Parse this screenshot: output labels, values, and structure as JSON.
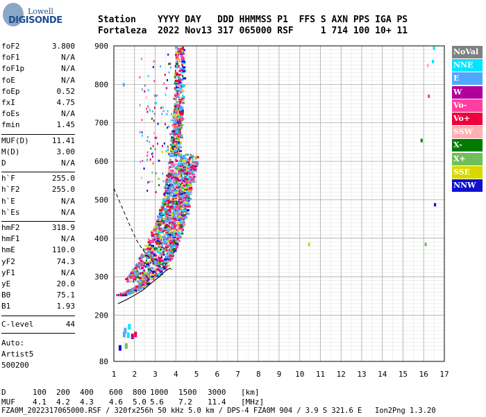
{
  "logo": {
    "line1": "Lowell",
    "line2": "DIGISONDE"
  },
  "header": {
    "line1": "Station    YYYY DAY   DDD HHMMSS P1  FFS S AXN PPS IGA PS",
    "line2": "Fortaleza  2022 Nov13 317 065000 RSF     1 714 100 10+ 11"
  },
  "params_group1": [
    {
      "name": "foF2",
      "value": "3.800"
    },
    {
      "name": "foF1",
      "value": "N/A"
    },
    {
      "name": "foF1p",
      "value": "N/A"
    },
    {
      "name": "foE",
      "value": "N/A"
    },
    {
      "name": "foEp",
      "value": "0.52"
    },
    {
      "name": "fxI",
      "value": "4.75"
    },
    {
      "name": "foEs",
      "value": "N/A"
    },
    {
      "name": "fmin",
      "value": "1.45"
    }
  ],
  "params_group2": [
    {
      "name": "MUF(D)",
      "value": "11.41"
    },
    {
      "name": "M(D)",
      "value": "3.00"
    },
    {
      "name": "D",
      "value": "N/A"
    }
  ],
  "params_group3": [
    {
      "name": "h`F",
      "value": "255.0"
    },
    {
      "name": "h`F2",
      "value": "255.0"
    },
    {
      "name": "h`E",
      "value": "N/A"
    },
    {
      "name": "h`Es",
      "value": "N/A"
    }
  ],
  "params_group4": [
    {
      "name": "hmF2",
      "value": "318.9"
    },
    {
      "name": "hmF1",
      "value": "N/A"
    },
    {
      "name": "hmE",
      "value": "110.0"
    },
    {
      "name": "yF2",
      "value": "74.3"
    },
    {
      "name": "yF1",
      "value": "N/A"
    },
    {
      "name": "yE",
      "value": "20.0"
    },
    {
      "name": "B0",
      "value": "75.1"
    },
    {
      "name": "B1",
      "value": "1.93"
    }
  ],
  "clevel": {
    "name": "C-level",
    "value": "44"
  },
  "autoscale": {
    "line1": "Auto:",
    "line2": "Artist5",
    "line3": "500200"
  },
  "footer": {
    "d_label": "D",
    "d_values": [
      "100",
      "200",
      "400",
      "600",
      "800",
      "1000",
      "1500",
      "3000"
    ],
    "d_unit": "[km]",
    "muf_label": "MUF",
    "muf_values": [
      "4.1",
      "4.2",
      "4.3",
      "4.6",
      "5.0",
      "5.6",
      "7.2",
      "11.4"
    ],
    "muf_unit": "[MHz]",
    "file_line": "FZA0M_2022317065000.RSF / 320fx256h 50 kHz 5.0 km / DPS-4 FZA0M 904 / 3.9 S 321.6 E   Ion2Png 1.3.20"
  },
  "legend": [
    {
      "label": "NoVal",
      "bg": "#808080",
      "fg": "#ffffff"
    },
    {
      "label": "NNE",
      "bg": "#00e5ff",
      "fg": "#ffffff"
    },
    {
      "label": "E",
      "bg": "#4fa8ff",
      "fg": "#ffffff"
    },
    {
      "label": "W",
      "bg": "#b0009a",
      "fg": "#ffffff"
    },
    {
      "label": "Vo-",
      "bg": "#ff3fa0",
      "fg": "#ffffff"
    },
    {
      "label": "Vo+",
      "bg": "#f0003c",
      "fg": "#ffffff"
    },
    {
      "label": "SSW",
      "bg": "#ffb0b0",
      "fg": "#ffffff"
    },
    {
      "label": "X-",
      "bg": "#007a00",
      "fg": "#ffffff"
    },
    {
      "label": "X+",
      "bg": "#6fbf5a",
      "fg": "#ffffff"
    },
    {
      "label": "SSE",
      "bg": "#d8d800",
      "fg": "#ffffff"
    },
    {
      "label": "NNW",
      "bg": "#1010d0",
      "fg": "#ffffff"
    }
  ],
  "chart_data": {
    "type": "scatter",
    "title": "",
    "xlabel": "",
    "ylabel": "",
    "xlim": [
      1,
      17
    ],
    "ylim": [
      80,
      900
    ],
    "x_ticks": [
      1,
      2,
      3,
      4,
      5,
      6,
      7,
      8,
      9,
      10,
      11,
      12,
      13,
      14,
      15,
      16,
      17
    ],
    "y_ticks": [
      80,
      200,
      300,
      400,
      500,
      600,
      700,
      800,
      900
    ],
    "grid": true,
    "ionogram_echo_band": {
      "description_free": true,
      "inner_edge": [
        [
          1.45,
          255
        ],
        [
          1.8,
          262
        ],
        [
          2.2,
          272
        ],
        [
          2.6,
          288
        ],
        [
          3.0,
          310
        ],
        [
          3.3,
          335
        ],
        [
          3.6,
          380
        ],
        [
          3.8,
          440
        ],
        [
          3.95,
          520
        ],
        [
          4.05,
          600
        ],
        [
          4.1,
          660
        ]
      ],
      "outer_edge": [
        [
          1.45,
          290
        ],
        [
          1.8,
          310
        ],
        [
          2.2,
          345
        ],
        [
          2.6,
          390
        ],
        [
          3.0,
          440
        ],
        [
          3.3,
          490
        ],
        [
          3.5,
          540
        ],
        [
          3.7,
          610
        ],
        [
          3.85,
          700
        ],
        [
          3.95,
          800
        ],
        [
          4.0,
          900
        ]
      ],
      "extra_o_to_x_outer": [
        [
          3.0,
          300
        ],
        [
          3.5,
          330
        ],
        [
          4.0,
          390
        ],
        [
          4.4,
          460
        ],
        [
          4.75,
          560
        ],
        [
          4.9,
          620
        ]
      ]
    },
    "profile_curve": [
      [
        1.2,
        230
      ],
      [
        1.6,
        240
      ],
      [
        2.0,
        252
      ],
      [
        2.4,
        265
      ],
      [
        2.8,
        283
      ],
      [
        3.2,
        300
      ],
      [
        3.5,
        315
      ],
      [
        3.7,
        322
      ],
      [
        3.8,
        318.9
      ]
    ],
    "profile_dashed": [
      [
        1.0,
        530
      ],
      [
        1.4,
        480
      ],
      [
        1.8,
        430
      ],
      [
        2.1,
        395
      ],
      [
        2.4,
        370
      ],
      [
        2.7,
        350
      ],
      [
        3.0,
        335
      ]
    ],
    "isolated_points": [
      {
        "x": 10.45,
        "y": 385,
        "color": "#d8d800"
      },
      {
        "x": 16.55,
        "y": 488,
        "color": "#1010d0"
      },
      {
        "x": 16.1,
        "y": 385,
        "color": "#6fbf5a"
      },
      {
        "x": 15.9,
        "y": 655,
        "color": "#007a00"
      },
      {
        "x": 16.25,
        "y": 770,
        "color": "#ff3fa0"
      },
      {
        "x": 16.5,
        "y": 895,
        "color": "#00e5ff"
      },
      {
        "x": 16.45,
        "y": 860,
        "color": "#00e5ff"
      },
      {
        "x": 16.2,
        "y": 850,
        "color": "#ffb0b0"
      },
      {
        "x": 1.48,
        "y": 800,
        "color": "#4fa8ff"
      }
    ],
    "low_cluster": [
      {
        "x": 1.5,
        "y": 150,
        "color": "#4fa8ff"
      },
      {
        "x": 1.7,
        "y": 148,
        "color": "#00e5ff"
      },
      {
        "x": 1.9,
        "y": 145,
        "color": "#b0009a"
      },
      {
        "x": 2.05,
        "y": 150,
        "color": "#f0003c"
      },
      {
        "x": 1.3,
        "y": 115,
        "color": "#1010d0"
      },
      {
        "x": 1.6,
        "y": 120,
        "color": "#6fbf5a"
      },
      {
        "x": 1.55,
        "y": 160,
        "color": "#4fa8ff"
      },
      {
        "x": 1.75,
        "y": 170,
        "color": "#00e5ff"
      }
    ]
  }
}
